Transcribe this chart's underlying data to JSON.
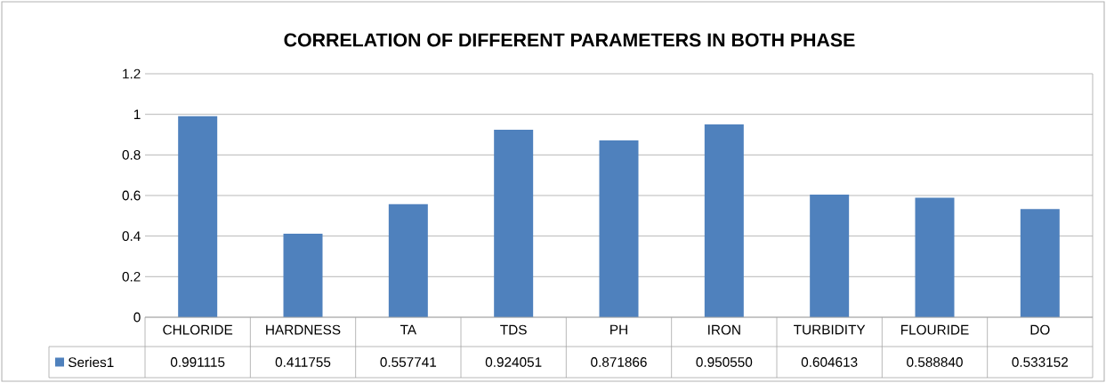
{
  "chart_data": {
    "type": "bar",
    "title": "CORRELATION OF DIFFERENT PARAMETERS IN BOTH PHASE",
    "categories": [
      "CHLORIDE",
      "HARDNESS",
      "TA",
      "TDS",
      "PH",
      "IRON",
      "TURBIDITY",
      "FLOURIDE",
      "DO"
    ],
    "series": [
      {
        "name": "Series1",
        "color": "#4f81bd",
        "values": [
          0.991115,
          0.411755,
          0.557741,
          0.924051,
          0.871866,
          0.95055,
          0.604613,
          0.58884,
          0.533152
        ],
        "value_labels": [
          "0.991115",
          "0.411755",
          "0.557741",
          "0.924051",
          "0.871866",
          "0.950550",
          "0.604613",
          "0.588840",
          "0.533152"
        ]
      }
    ],
    "ylim": [
      0,
      1.2
    ],
    "yticks": [
      0,
      0.2,
      0.4,
      0.6,
      0.8,
      1,
      1.2
    ],
    "grid": "y",
    "legend": "bottom"
  }
}
